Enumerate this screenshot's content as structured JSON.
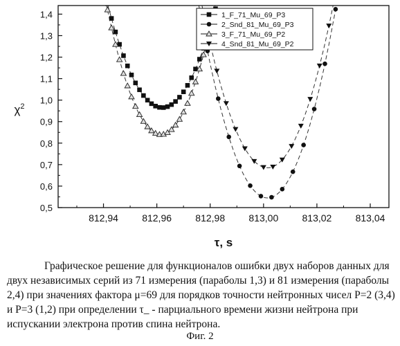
{
  "chart_data": {
    "type": "scatter",
    "title": "",
    "xlabel": "τ, s",
    "ylabel": "χ²",
    "xlim": [
      812.923,
      813.047
    ],
    "ylim": [
      0.5,
      1.44
    ],
    "xticks": [
      812.94,
      812.96,
      812.98,
      813.0,
      813.02,
      813.04
    ],
    "xtick_labels": [
      "812,94",
      "812,96",
      "812,98",
      "813,00",
      "813,02",
      "813,04"
    ],
    "yticks": [
      0.5,
      0.6,
      0.7,
      0.8,
      0.9,
      1.0,
      1.1,
      1.2,
      1.3,
      1.4
    ],
    "ytick_labels": [
      "0,5",
      "0,6",
      "0,7",
      "0,8",
      "0,9",
      "1,0",
      "1,1",
      "1,2",
      "1,3",
      "1,4"
    ],
    "grid": false,
    "legend_position": "top-right",
    "series": [
      {
        "name": "1_F_71_Mu_69_P3",
        "marker": "square",
        "center": 812.962,
        "min": 0.965,
        "curvature": 1150,
        "xrange": [
          812.94,
          812.989
        ],
        "step": 0.0015
      },
      {
        "name": "2_Snd_81_Mu_69_P3",
        "marker": "circle",
        "center": 813.0015,
        "min": 0.545,
        "curvature": 1350,
        "xrange": [
          812.955,
          813.047
        ],
        "step": 0.004
      },
      {
        "name": "3_F_71_Mu_69_P2",
        "marker": "triangle-up",
        "center": 812.9615,
        "min": 0.84,
        "curvature": 1450,
        "xrange": [
          812.922,
          812.985
        ],
        "step": 0.0015
      },
      {
        "name": "4_Snd_81_Mu_69_P2",
        "marker": "triangle-down",
        "center": 813.0015,
        "min": 0.685,
        "curvature": 1250,
        "xrange": [
          812.958,
          813.043
        ],
        "step": 0.0035
      }
    ],
    "fit_curves": "dashed"
  },
  "caption": {
    "text": "Графическое решение для функционалов ошибки двух наборов данных для двух независимых серий из 71 измерения (параболы 1,3) и 81 измерения (параболы 2,4) при значениях фактора μ=69  для порядков точности нейтронных чисел P=2 (3,4) и P=3 (1,2) при определении τ_  - парциального времени жизни нейтрона при испускании электрона против спина нейтрона.",
    "figure_label": "Фиг. 2"
  }
}
